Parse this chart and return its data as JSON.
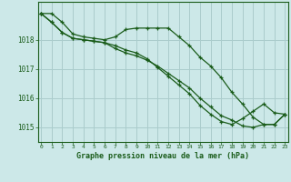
{
  "title": "Graphe pression niveau de la mer (hPa)",
  "background_color": "#cce8e8",
  "plot_bg_color": "#cce8e8",
  "grid_color": "#aacccc",
  "line_color": "#1a5c1a",
  "ylim": [
    1014.5,
    1019.3
  ],
  "xlim": [
    -0.3,
    23.3
  ],
  "yticks": [
    1015,
    1016,
    1017,
    1018
  ],
  "xticks": [
    0,
    1,
    2,
    3,
    4,
    5,
    6,
    7,
    8,
    9,
    10,
    11,
    12,
    13,
    14,
    15,
    16,
    17,
    18,
    19,
    20,
    21,
    22,
    23
  ],
  "series1": [
    1018.9,
    1018.9,
    1018.6,
    1018.2,
    1018.1,
    1018.05,
    1018.0,
    1018.1,
    1018.35,
    1018.4,
    1018.4,
    1018.4,
    1018.4,
    1018.1,
    1017.8,
    1017.4,
    1017.1,
    1016.7,
    1016.2,
    1015.8,
    1015.35,
    1015.1,
    1015.1,
    1015.45
  ],
  "series2": [
    1018.9,
    1018.6,
    1018.25,
    1018.05,
    1018.0,
    1017.95,
    1017.9,
    1017.7,
    1017.55,
    1017.45,
    1017.3,
    1017.1,
    1016.85,
    1016.6,
    1016.35,
    1016.0,
    1015.7,
    1015.4,
    1015.25,
    1015.05,
    1015.0,
    1015.1,
    1015.1,
    1015.45
  ],
  "series3": [
    1018.9,
    1018.6,
    1018.25,
    1018.05,
    1018.0,
    1017.95,
    1017.9,
    1017.8,
    1017.65,
    1017.55,
    1017.35,
    1017.05,
    1016.75,
    1016.45,
    1016.15,
    1015.75,
    1015.45,
    1015.2,
    1015.1,
    1015.3,
    1015.55,
    1015.8,
    1015.5,
    1015.45
  ]
}
